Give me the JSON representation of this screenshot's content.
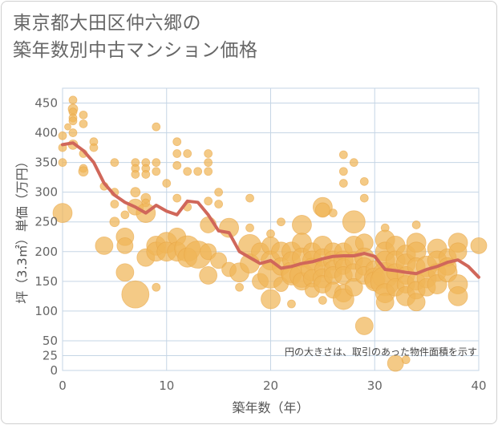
{
  "title": {
    "line1": "東京都大田区仲六郷の",
    "line2": "築年数別中古マンション価格"
  },
  "chart_data": {
    "type": "scatter",
    "xlabel": "築年数（年）",
    "ylabel": "坪（3.3㎡）単価（万円）",
    "xlim": [
      0,
      40
    ],
    "ylim": [
      0,
      475
    ],
    "x_ticks": [
      0,
      10,
      20,
      30,
      40
    ],
    "y_ticks": [
      0,
      25,
      50,
      100,
      150,
      200,
      250,
      300,
      350,
      400,
      450
    ],
    "grid": true,
    "note": "円の大きさは、取引のあった物件面積を示す",
    "colors": {
      "bubble": "#f0b558",
      "line": "#d0675a",
      "grid": "#c5d5e5"
    },
    "trend_line": {
      "x": [
        0,
        1,
        2,
        3,
        4,
        5,
        6,
        7,
        8,
        9,
        10,
        11,
        12,
        13,
        14,
        15,
        16,
        17,
        18,
        19,
        20,
        21,
        22,
        23,
        24,
        25,
        26,
        27,
        28,
        29,
        30,
        31,
        32,
        33,
        34,
        35,
        36,
        37,
        38,
        39,
        40
      ],
      "y": [
        380,
        383,
        370,
        350,
        315,
        295,
        283,
        275,
        265,
        278,
        268,
        262,
        285,
        283,
        262,
        235,
        232,
        200,
        190,
        180,
        185,
        172,
        175,
        180,
        183,
        188,
        192,
        193,
        193,
        197,
        192,
        170,
        168,
        165,
        163,
        170,
        175,
        182,
        186,
        175,
        157
      ]
    },
    "bubbles": [
      [
        0,
        395,
        5
      ],
      [
        0,
        375,
        5
      ],
      [
        0,
        350,
        5
      ],
      [
        0,
        265,
        12
      ],
      [
        0.5,
        410,
        4
      ],
      [
        1,
        455,
        5
      ],
      [
        1,
        440,
        6
      ],
      [
        1,
        435,
        5
      ],
      [
        1,
        425,
        5
      ],
      [
        1,
        420,
        5
      ],
      [
        1,
        400,
        5
      ],
      [
        1,
        380,
        6
      ],
      [
        2,
        430,
        5
      ],
      [
        2,
        415,
        5
      ],
      [
        2,
        365,
        5
      ],
      [
        2,
        340,
        5
      ],
      [
        2,
        335,
        6
      ],
      [
        3,
        385,
        5
      ],
      [
        3,
        375,
        5
      ],
      [
        4,
        310,
        5
      ],
      [
        4,
        210,
        11
      ],
      [
        5,
        350,
        5
      ],
      [
        5,
        300,
        5
      ],
      [
        5,
        280,
        5
      ],
      [
        5,
        250,
        6
      ],
      [
        6,
        225,
        11
      ],
      [
        6,
        210,
        10
      ],
      [
        6,
        165,
        11
      ],
      [
        6,
        262,
        5
      ],
      [
        7,
        350,
        5
      ],
      [
        7,
        340,
        5
      ],
      [
        7,
        330,
        5
      ],
      [
        7,
        300,
        6
      ],
      [
        7,
        275,
        10
      ],
      [
        7,
        128,
        17
      ],
      [
        8,
        350,
        5
      ],
      [
        8,
        340,
        5
      ],
      [
        8,
        330,
        5
      ],
      [
        8,
        290,
        6
      ],
      [
        8,
        282,
        5
      ],
      [
        8,
        265,
        12
      ],
      [
        8,
        190,
        11
      ],
      [
        9,
        410,
        5
      ],
      [
        9,
        350,
        5
      ],
      [
        9,
        335,
        5
      ],
      [
        9,
        210,
        12
      ],
      [
        9,
        200,
        12
      ],
      [
        9,
        140,
        5
      ],
      [
        10,
        315,
        5
      ],
      [
        10,
        215,
        13
      ],
      [
        10,
        200,
        12
      ],
      [
        11,
        385,
        5
      ],
      [
        11,
        365,
        5
      ],
      [
        11,
        345,
        5
      ],
      [
        11,
        290,
        5
      ],
      [
        11,
        225,
        11
      ],
      [
        11,
        200,
        12
      ],
      [
        12,
        365,
        5
      ],
      [
        12,
        335,
        5
      ],
      [
        12,
        275,
        5
      ],
      [
        12,
        205,
        16
      ],
      [
        12,
        190,
        12
      ],
      [
        13,
        335,
        5
      ],
      [
        13,
        195,
        17
      ],
      [
        14,
        365,
        5
      ],
      [
        14,
        350,
        5
      ],
      [
        14,
        335,
        5
      ],
      [
        14,
        285,
        5
      ],
      [
        14,
        245,
        10
      ],
      [
        14,
        200,
        10
      ],
      [
        14,
        160,
        11
      ],
      [
        15,
        300,
        5
      ],
      [
        15,
        280,
        5
      ],
      [
        15,
        185,
        10
      ],
      [
        16,
        240,
        12
      ],
      [
        16,
        170,
        9
      ],
      [
        17,
        165,
        12
      ],
      [
        17,
        140,
        5
      ],
      [
        18,
        290,
        5
      ],
      [
        18,
        240,
        5
      ],
      [
        18,
        210,
        14
      ],
      [
        18,
        180,
        12
      ],
      [
        19,
        200,
        11
      ],
      [
        19,
        150,
        10
      ],
      [
        20,
        230,
        5
      ],
      [
        20,
        210,
        11
      ],
      [
        20,
        185,
        12
      ],
      [
        20,
        160,
        16
      ],
      [
        20,
        120,
        12
      ],
      [
        21,
        250,
        5
      ],
      [
        21,
        200,
        12
      ],
      [
        21,
        175,
        11
      ],
      [
        21,
        145,
        9
      ],
      [
        22,
        200,
        12
      ],
      [
        22,
        185,
        11
      ],
      [
        22,
        165,
        13
      ],
      [
        22,
        160,
        12
      ],
      [
        22,
        112,
        5
      ],
      [
        23,
        245,
        12
      ],
      [
        23,
        215,
        12
      ],
      [
        23,
        190,
        12
      ],
      [
        23,
        160,
        15
      ],
      [
        23,
        150,
        11
      ],
      [
        24,
        200,
        11
      ],
      [
        24,
        185,
        12
      ],
      [
        24,
        170,
        14
      ],
      [
        24,
        155,
        11
      ],
      [
        24,
        135,
        9
      ],
      [
        25,
        275,
        12
      ],
      [
        25,
        270,
        9
      ],
      [
        25,
        210,
        12
      ],
      [
        25,
        190,
        11
      ],
      [
        25,
        170,
        10
      ],
      [
        25,
        155,
        12
      ],
      [
        25,
        145,
        11
      ],
      [
        25,
        118,
        5
      ],
      [
        26,
        265,
        5
      ],
      [
        26,
        200,
        11
      ],
      [
        26,
        185,
        12
      ],
      [
        26,
        170,
        11
      ],
      [
        26,
        160,
        11
      ],
      [
        26,
        135,
        10
      ],
      [
        27,
        363,
        5
      ],
      [
        27,
        335,
        5
      ],
      [
        27,
        315,
        5
      ],
      [
        27,
        200,
        11
      ],
      [
        27,
        185,
        12
      ],
      [
        27,
        175,
        10
      ],
      [
        27,
        160,
        11
      ],
      [
        27,
        130,
        11
      ],
      [
        27,
        120,
        13
      ],
      [
        28,
        350,
        5
      ],
      [
        28,
        250,
        14
      ],
      [
        28,
        210,
        12
      ],
      [
        28,
        185,
        11
      ],
      [
        28,
        165,
        11
      ],
      [
        28,
        140,
        11
      ],
      [
        29,
        318,
        5
      ],
      [
        29,
        290,
        5
      ],
      [
        29,
        215,
        11
      ],
      [
        29,
        190,
        12
      ],
      [
        29,
        175,
        11
      ],
      [
        29,
        160,
        11
      ],
      [
        29,
        75,
        11
      ],
      [
        30,
        170,
        11
      ],
      [
        30,
        155,
        13
      ],
      [
        30,
        150,
        12
      ],
      [
        31,
        240,
        5
      ],
      [
        31,
        220,
        12
      ],
      [
        31,
        200,
        12
      ],
      [
        31,
        185,
        12
      ],
      [
        31,
        160,
        16
      ],
      [
        31,
        150,
        18
      ],
      [
        31,
        130,
        12
      ],
      [
        31,
        115,
        11
      ],
      [
        32,
        210,
        12
      ],
      [
        32,
        185,
        12
      ],
      [
        32,
        165,
        11
      ],
      [
        32,
        140,
        11
      ],
      [
        32,
        12,
        10
      ],
      [
        33,
        195,
        12
      ],
      [
        33,
        180,
        12
      ],
      [
        33,
        160,
        11
      ],
      [
        33,
        145,
        11
      ],
      [
        33,
        125,
        12
      ],
      [
        33,
        18,
        5
      ],
      [
        34,
        245,
        5
      ],
      [
        34,
        215,
        12
      ],
      [
        34,
        200,
        12
      ],
      [
        34,
        175,
        11
      ],
      [
        34,
        150,
        11
      ],
      [
        34,
        135,
        11
      ],
      [
        34,
        115,
        11
      ],
      [
        35,
        175,
        13
      ],
      [
        35,
        155,
        12
      ],
      [
        35,
        140,
        11
      ],
      [
        36,
        205,
        12
      ],
      [
        36,
        185,
        12
      ],
      [
        36,
        165,
        11
      ],
      [
        36,
        145,
        12
      ],
      [
        37,
        190,
        11
      ],
      [
        37,
        175,
        11
      ],
      [
        37,
        165,
        12
      ],
      [
        38,
        215,
        12
      ],
      [
        38,
        200,
        11
      ],
      [
        38,
        145,
        12
      ],
      [
        38,
        125,
        12
      ],
      [
        40,
        210,
        10
      ]
    ]
  }
}
